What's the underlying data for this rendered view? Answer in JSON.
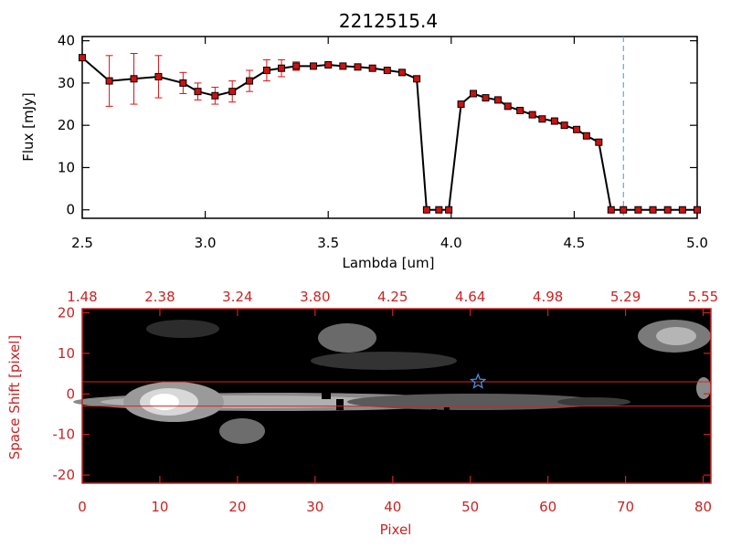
{
  "title": "2212515.4",
  "colors": {
    "axes_top": "#000000",
    "axes_bottom": "#cc2222",
    "errorbar": "#dd1111",
    "marker_fill": "#cc1111",
    "line": "#000000",
    "dashed_line": "#3aa0c8",
    "star": "#4a8fe0",
    "slit_lines": "#dd2222"
  },
  "chart_data": [
    {
      "type": "line",
      "xlabel": "Lambda [um]",
      "ylabel": "Flux [mJy]",
      "xlim": [
        2.5,
        5.0
      ],
      "ylim": [
        -2,
        41
      ],
      "xticks": [
        2.5,
        3.0,
        3.5,
        4.0,
        4.5,
        5.0
      ],
      "xtick_labels": [
        "2.5",
        "3.0",
        "3.5",
        "4.0",
        "4.5",
        "5.0"
      ],
      "yticks": [
        0,
        10,
        20,
        30,
        40
      ],
      "ytick_labels": [
        "0",
        "10",
        "20",
        "30",
        "40"
      ],
      "vline_x": 4.7,
      "series": [
        {
          "x": [
            2.5,
            2.61,
            2.71,
            2.81,
            2.91,
            2.97,
            3.04,
            3.11,
            3.18,
            3.25,
            3.31,
            3.37,
            3.44,
            3.5,
            3.56,
            3.62,
            3.68,
            3.74,
            3.8,
            3.86,
            3.9,
            3.95,
            3.99,
            4.04,
            4.09,
            4.14,
            4.19,
            4.23,
            4.28,
            4.33,
            4.37,
            4.42,
            4.46,
            4.51,
            4.55,
            4.6,
            4.65,
            4.7,
            4.76,
            4.82,
            4.88,
            4.94,
            5.0
          ],
          "y": [
            36.0,
            30.5,
            31.0,
            31.5,
            30.0,
            28.0,
            27.0,
            28.0,
            30.5,
            33.0,
            33.5,
            34.0,
            34.0,
            34.3,
            34.0,
            33.8,
            33.5,
            33.0,
            32.5,
            31.0,
            0,
            0,
            0,
            25.0,
            27.5,
            26.5,
            26.0,
            24.5,
            23.5,
            22.5,
            21.5,
            21.0,
            20.0,
            19.0,
            17.5,
            16.0,
            0,
            0,
            0,
            0,
            0,
            0,
            0
          ],
          "err": [
            0,
            6.0,
            6.0,
            5.0,
            2.5,
            2.0,
            2.0,
            2.5,
            2.5,
            2.5,
            2.0,
            1.0,
            0,
            0,
            0,
            0,
            0,
            0,
            0,
            0,
            0,
            0,
            0,
            0,
            0,
            0,
            0,
            0,
            0,
            0,
            0,
            0,
            0,
            0,
            0,
            0,
            0,
            0,
            0,
            0,
            0,
            0,
            0
          ]
        }
      ]
    },
    {
      "type": "heatmap",
      "xlabel": "Pixel",
      "ylabel": "Space Shift [pixel]",
      "xlim": [
        0,
        81
      ],
      "ylim": [
        -22,
        21
      ],
      "xticks": [
        0,
        10,
        20,
        30,
        40,
        50,
        60,
        70,
        80
      ],
      "xtick_labels": [
        "0",
        "10",
        "20",
        "30",
        "40",
        "50",
        "60",
        "70",
        "80"
      ],
      "yticks": [
        -20,
        -10,
        0,
        10,
        20
      ],
      "ytick_labels": [
        "-20",
        "-10",
        "0",
        "10",
        "20"
      ],
      "top_tick_labels": [
        "1.48",
        "2.38",
        "3.24",
        "3.80",
        "4.25",
        "4.64",
        "4.98",
        "5.29",
        "5.55"
      ],
      "slit_lines_y": [
        3,
        -3
      ],
      "star_marker": {
        "x": 51,
        "y": 3
      }
    }
  ]
}
